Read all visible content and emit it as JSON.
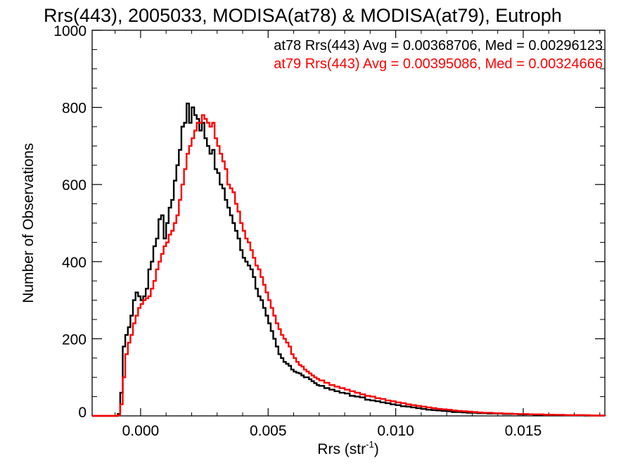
{
  "chart_data": {
    "type": "line",
    "title": "Rrs(443), 2005033, MODISA(at78) & MODISA(at79), Eutroph",
    "xlabel_main": "Rrs (str",
    "xlabel_sup": "-1",
    "xlabel_close": ")",
    "ylabel": "Number of Observations",
    "xlim": [
      -0.0019,
      0.0182
    ],
    "ylim": [
      0,
      1000
    ],
    "x_ticks": [
      0.0,
      0.005,
      0.01,
      0.015
    ],
    "x_tick_labels": [
      "0.000",
      "0.005",
      "0.010",
      "0.015"
    ],
    "y_ticks": [
      0,
      200,
      400,
      600,
      800,
      1000
    ],
    "y_tick_labels": [
      "0",
      "200",
      "400",
      "600",
      "800",
      "1000"
    ],
    "grid": false,
    "legend_placement": "top-right",
    "legend": [
      {
        "text": "at78 Rrs(443) Avg = 0.00368706, Med = 0.00296123",
        "color": "#000000"
      },
      {
        "text": "at79 Rrs(443) Avg = 0.00395086, Med = 0.00324666",
        "color": "#ff0000"
      }
    ],
    "series": [
      {
        "color": "#000000",
        "x": [
          -0.0019,
          -0.0009,
          -0.0008,
          -0.0007,
          -0.0006,
          -0.0005,
          -0.0004,
          -0.0003,
          -0.0002,
          -0.0001,
          0.0,
          0.0001,
          0.0002,
          0.0003,
          0.0004,
          0.0005,
          0.0006,
          0.0007,
          0.0008,
          0.0009,
          0.001,
          0.0011,
          0.0012,
          0.0013,
          0.0014,
          0.0015,
          0.0016,
          0.0017,
          0.0018,
          0.0019,
          0.002,
          0.0021,
          0.0022,
          0.0023,
          0.0024,
          0.0025,
          0.0026,
          0.0027,
          0.0028,
          0.0029,
          0.003,
          0.0031,
          0.0032,
          0.0033,
          0.0034,
          0.0035,
          0.0036,
          0.0037,
          0.0038,
          0.0039,
          0.004,
          0.0041,
          0.0042,
          0.0043,
          0.0044,
          0.0045,
          0.0046,
          0.0047,
          0.0048,
          0.0049,
          0.005,
          0.0051,
          0.0052,
          0.0053,
          0.0054,
          0.0055,
          0.0056,
          0.0057,
          0.0058,
          0.0059,
          0.006,
          0.0061,
          0.0062,
          0.0063,
          0.0064,
          0.0065,
          0.0066,
          0.0067,
          0.0068,
          0.0069,
          0.007,
          0.0072,
          0.0074,
          0.0076,
          0.0078,
          0.008,
          0.0082,
          0.0084,
          0.0086,
          0.0088,
          0.009,
          0.0092,
          0.0094,
          0.0096,
          0.0098,
          0.01,
          0.0102,
          0.0104,
          0.0106,
          0.0108,
          0.011,
          0.0112,
          0.0114,
          0.0116,
          0.0118,
          0.012,
          0.0122,
          0.0124,
          0.0126,
          0.0128,
          0.013,
          0.0132,
          0.0134,
          0.0136,
          0.0138,
          0.014,
          0.0142,
          0.0144,
          0.0146,
          0.0148,
          0.015,
          0.0152,
          0.0154,
          0.0156,
          0.0158,
          0.016,
          0.0162,
          0.0164,
          0.0166,
          0.0168,
          0.017,
          0.0172,
          0.0174,
          0.0176,
          0.0178,
          0.018,
          0.0182
        ],
        "values": [
          0,
          5,
          60,
          180,
          210,
          230,
          260,
          300,
          320,
          310,
          300,
          310,
          330,
          380,
          400,
          440,
          460,
          510,
          520,
          460,
          500,
          540,
          560,
          610,
          650,
          690,
          750,
          760,
          810,
          760,
          800,
          780,
          770,
          740,
          760,
          720,
          700,
          680,
          690,
          640,
          630,
          600,
          590,
          560,
          540,
          520,
          500,
          480,
          460,
          430,
          410,
          400,
          390,
          380,
          360,
          330,
          310,
          300,
          280,
          260,
          240,
          220,
          200,
          180,
          160,
          150,
          140,
          135,
          130,
          120,
          115,
          112,
          110,
          105,
          100,
          100,
          95,
          90,
          85,
          80,
          78,
          72,
          68,
          64,
          60,
          58,
          52,
          50,
          48,
          42,
          40,
          38,
          35,
          33,
          30,
          28,
          25,
          24,
          22,
          20,
          18,
          16,
          15,
          14,
          13,
          12,
          10,
          10,
          9,
          8,
          8,
          7,
          7,
          6,
          6,
          6,
          5,
          5,
          5,
          4,
          4,
          4,
          3,
          3,
          3,
          3,
          2,
          2,
          2,
          2,
          2,
          2,
          1,
          1,
          1,
          1,
          0
        ]
      },
      {
        "color": "#ff0000",
        "x": [
          -0.0019,
          -0.0009,
          -0.0008,
          -0.0007,
          -0.0006,
          -0.0005,
          -0.0004,
          -0.0003,
          -0.0002,
          -0.0001,
          0.0,
          0.0001,
          0.0002,
          0.0003,
          0.0004,
          0.0005,
          0.0006,
          0.0007,
          0.0008,
          0.0009,
          0.001,
          0.0011,
          0.0012,
          0.0013,
          0.0014,
          0.0015,
          0.0016,
          0.0017,
          0.0018,
          0.0019,
          0.002,
          0.0021,
          0.0022,
          0.0023,
          0.0024,
          0.0025,
          0.0026,
          0.0027,
          0.0028,
          0.0029,
          0.003,
          0.0031,
          0.0032,
          0.0033,
          0.0034,
          0.0035,
          0.0036,
          0.0037,
          0.0038,
          0.0039,
          0.004,
          0.0041,
          0.0042,
          0.0043,
          0.0044,
          0.0045,
          0.0046,
          0.0047,
          0.0048,
          0.0049,
          0.005,
          0.0051,
          0.0052,
          0.0053,
          0.0054,
          0.0055,
          0.0056,
          0.0057,
          0.0058,
          0.0059,
          0.006,
          0.0061,
          0.0062,
          0.0063,
          0.0064,
          0.0065,
          0.0066,
          0.0067,
          0.0068,
          0.0069,
          0.007,
          0.0072,
          0.0074,
          0.0076,
          0.0078,
          0.008,
          0.0082,
          0.0084,
          0.0086,
          0.0088,
          0.009,
          0.0092,
          0.0094,
          0.0096,
          0.0098,
          0.01,
          0.0102,
          0.0104,
          0.0106,
          0.0108,
          0.011,
          0.0112,
          0.0114,
          0.0116,
          0.0118,
          0.012,
          0.0122,
          0.0124,
          0.0126,
          0.0128,
          0.013,
          0.0132,
          0.0134,
          0.0136,
          0.0138,
          0.014,
          0.0142,
          0.0144,
          0.0146,
          0.0148,
          0.015,
          0.0152,
          0.0154,
          0.0156,
          0.0158,
          0.016,
          0.0162,
          0.0164,
          0.0166,
          0.0168,
          0.017,
          0.0172,
          0.0174,
          0.0176,
          0.0178,
          0.018,
          0.0182
        ],
        "values": [
          0,
          2,
          30,
          100,
          160,
          190,
          210,
          240,
          260,
          280,
          290,
          300,
          305,
          310,
          330,
          350,
          380,
          400,
          420,
          440,
          450,
          470,
          480,
          500,
          520,
          560,
          600,
          640,
          680,
          700,
          720,
          740,
          760,
          760,
          780,
          770,
          760,
          750,
          760,
          720,
          700,
          680,
          660,
          640,
          600,
          590,
          580,
          550,
          530,
          500,
          480,
          460,
          450,
          430,
          410,
          390,
          380,
          360,
          340,
          320,
          300,
          280,
          260,
          240,
          225,
          210,
          200,
          190,
          180,
          160,
          150,
          140,
          132,
          128,
          120,
          115,
          110,
          105,
          100,
          96,
          92,
          86,
          80,
          76,
          72,
          68,
          64,
          60,
          56,
          52,
          50,
          46,
          44,
          40,
          38,
          35,
          33,
          30,
          28,
          26,
          24,
          22,
          20,
          18,
          17,
          16,
          14,
          13,
          12,
          11,
          10,
          9,
          8,
          8,
          7,
          7,
          6,
          6,
          5,
          5,
          5,
          4,
          4,
          4,
          3,
          3,
          3,
          3,
          2,
          2,
          2,
          2,
          2,
          1,
          1,
          1,
          0
        ]
      }
    ]
  }
}
